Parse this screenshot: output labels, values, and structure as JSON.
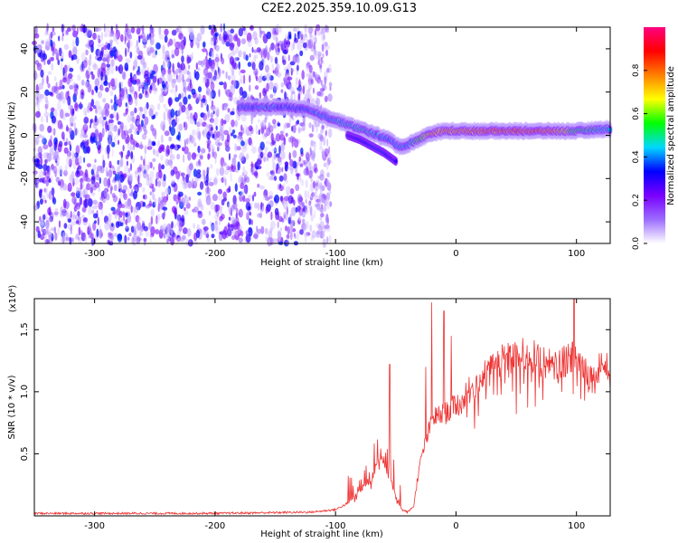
{
  "figure_title": "C2E2.2025.359.10.09.G13",
  "chart_data": [
    {
      "type": "heatmap",
      "title": "C2E2.2025.359.10.09.G13",
      "xlabel": "Height of straight line (km)",
      "ylabel": "Frequency (Hz)",
      "xlim": [
        -350,
        128
      ],
      "ylim": [
        -50,
        50
      ],
      "xticks": [
        -300,
        -200,
        -100,
        0,
        100
      ],
      "yticks": [
        -40,
        -20,
        0,
        20,
        40
      ],
      "colorbar": {
        "label": "Normalized spectral amplitude",
        "range": [
          0,
          1
        ],
        "ticks": [
          "0.0",
          "0.2",
          "0.4",
          "0.6",
          "0.8"
        ],
        "colormap": [
          "#ffffff",
          "#9b6cff",
          "#7a00ff",
          "#0000ff",
          "#00d8ff",
          "#00ff00",
          "#ffff00",
          "#ff8000",
          "#ff0000",
          "#ff0080"
        ]
      },
      "noise_region_x": [
        -350,
        -110
      ],
      "ridge": {
        "x": [
          -180,
          -160,
          -140,
          -125,
          -115,
          -105,
          -95,
          -85,
          -75,
          -65,
          -55,
          -48,
          -42,
          -35,
          -28,
          -20,
          -10,
          0,
          20,
          50,
          80,
          100,
          128
        ],
        "freq": [
          13,
          13,
          13,
          12,
          10,
          8,
          6,
          4,
          2,
          0,
          -2,
          -5,
          -5,
          -3,
          -1,
          1,
          2,
          2,
          2,
          2,
          2,
          2,
          3
        ],
        "amplitude": [
          0.45,
          0.48,
          0.42,
          0.45,
          0.5,
          0.5,
          0.5,
          0.55,
          0.55,
          0.5,
          0.45,
          0.5,
          0.5,
          0.55,
          0.7,
          0.85,
          0.9,
          0.9,
          0.95,
          1.0,
          0.95,
          0.6,
          0.5
        ]
      },
      "secondary_ridge": {
        "x": [
          -90,
          -80,
          -70,
          -60,
          -55,
          -50
        ],
        "freq": [
          0,
          -2,
          -5,
          -8,
          -10,
          -12
        ],
        "amplitude": [
          0.4,
          0.45,
          0.5,
          0.5,
          0.45,
          0.4
        ]
      }
    },
    {
      "type": "line",
      "title": "",
      "xlabel": "Height of straight line (km)",
      "ylabel": "SNR (10 * v/v)",
      "ymultiplier": "(x10⁴)",
      "xlim": [
        -350,
        128
      ],
      "ylim": [
        0,
        1.75
      ],
      "xticks": [
        -300,
        -200,
        -100,
        0,
        100
      ],
      "yticks": [
        "0.5",
        "1.0",
        "1.5"
      ],
      "color": "#ee3333",
      "series": [
        {
          "name": "SNR",
          "x": [
            -350,
            -300,
            -200,
            -120,
            -100,
            -90,
            -80,
            -70,
            -65,
            -60,
            -57,
            -55,
            -50,
            -45,
            -40,
            -35,
            -32,
            -28,
            -25,
            -22,
            -20,
            -18,
            -15,
            -10,
            -5,
            0,
            5,
            10,
            20,
            30,
            40,
            50,
            60,
            70,
            80,
            90,
            95,
            100,
            110,
            115,
            120,
            128
          ],
          "values": [
            0.02,
            0.02,
            0.02,
            0.03,
            0.05,
            0.1,
            0.2,
            0.3,
            0.45,
            0.45,
            0.35,
            0.3,
            0.15,
            0.05,
            0.03,
            0.08,
            0.3,
            0.5,
            0.6,
            0.7,
            0.75,
            0.8,
            0.8,
            0.82,
            0.85,
            0.9,
            0.9,
            1.0,
            1.1,
            1.2,
            1.25,
            1.28,
            1.3,
            1.25,
            1.2,
            1.25,
            1.3,
            1.3,
            1.15,
            1.1,
            1.25,
            1.15
          ],
          "peaks": [
            {
              "x": -55,
              "y": 1.22
            },
            {
              "x": -25,
              "y": 1.2
            },
            {
              "x": -20,
              "y": 1.72
            },
            {
              "x": -10,
              "y": 1.65
            },
            {
              "x": -4,
              "y": 1.45
            },
            {
              "x": 98,
              "y": 1.77
            }
          ]
        }
      ]
    }
  ]
}
